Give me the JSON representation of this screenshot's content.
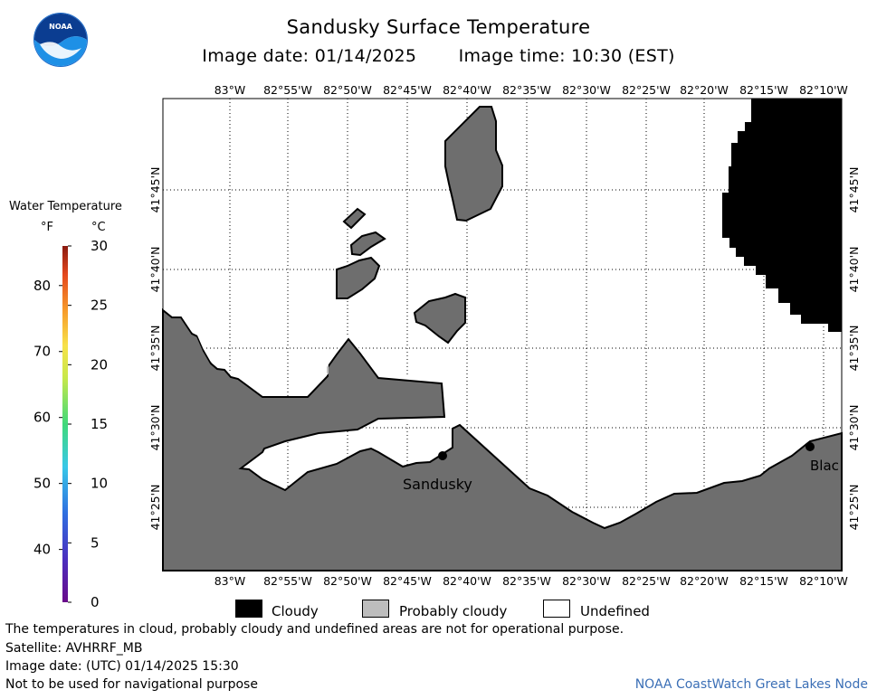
{
  "title": "Sandusky Surface Temperature",
  "image_date_label": "Image date: 01/14/2025",
  "image_time_label": "Image time: 10:30 (EST)",
  "logo_text": "NOAA",
  "colorbar": {
    "title": "Water Temperature",
    "unit_f": "°F",
    "unit_c": "°C",
    "fahrenheit_ticks": [
      "80",
      "70",
      "60",
      "50",
      "40"
    ],
    "celsius_ticks": [
      "30",
      "25",
      "20",
      "15",
      "10",
      "5",
      "0"
    ]
  },
  "map": {
    "lon_labels": [
      "83°W",
      "82°55'W",
      "82°50'W",
      "82°45'W",
      "82°40'W",
      "82°35'W",
      "82°30'W",
      "82°25'W",
      "82°20'W",
      "82°15'W",
      "82°10'W"
    ],
    "lat_labels": [
      "41°45'N",
      "41°40'N",
      "41°35'N",
      "41°30'N",
      "41°25'N"
    ],
    "places": {
      "sandusky": "Sandusky",
      "blac": "Blac"
    },
    "colors": {
      "land": "#6e6e6e",
      "cloudy": "#000000",
      "water": "#ffffff"
    }
  },
  "legend": {
    "items": [
      {
        "label": "Cloudy",
        "color": "#000000"
      },
      {
        "label": "Probably cloudy",
        "color": "#bdbdbd"
      },
      {
        "label": "Undefined",
        "color": "#ffffff"
      }
    ]
  },
  "footer": {
    "disclaimer": "The temperatures in cloud, probably cloudy and undefined areas are not for operational purpose.",
    "satellite": "Satellite: AVHRRF_MB",
    "utc_date": "Image date: (UTC) 01/14/2025  15:30",
    "warning": "Not to be used for navigational purpose",
    "credit": "NOAA CoastWatch Great Lakes Node"
  }
}
